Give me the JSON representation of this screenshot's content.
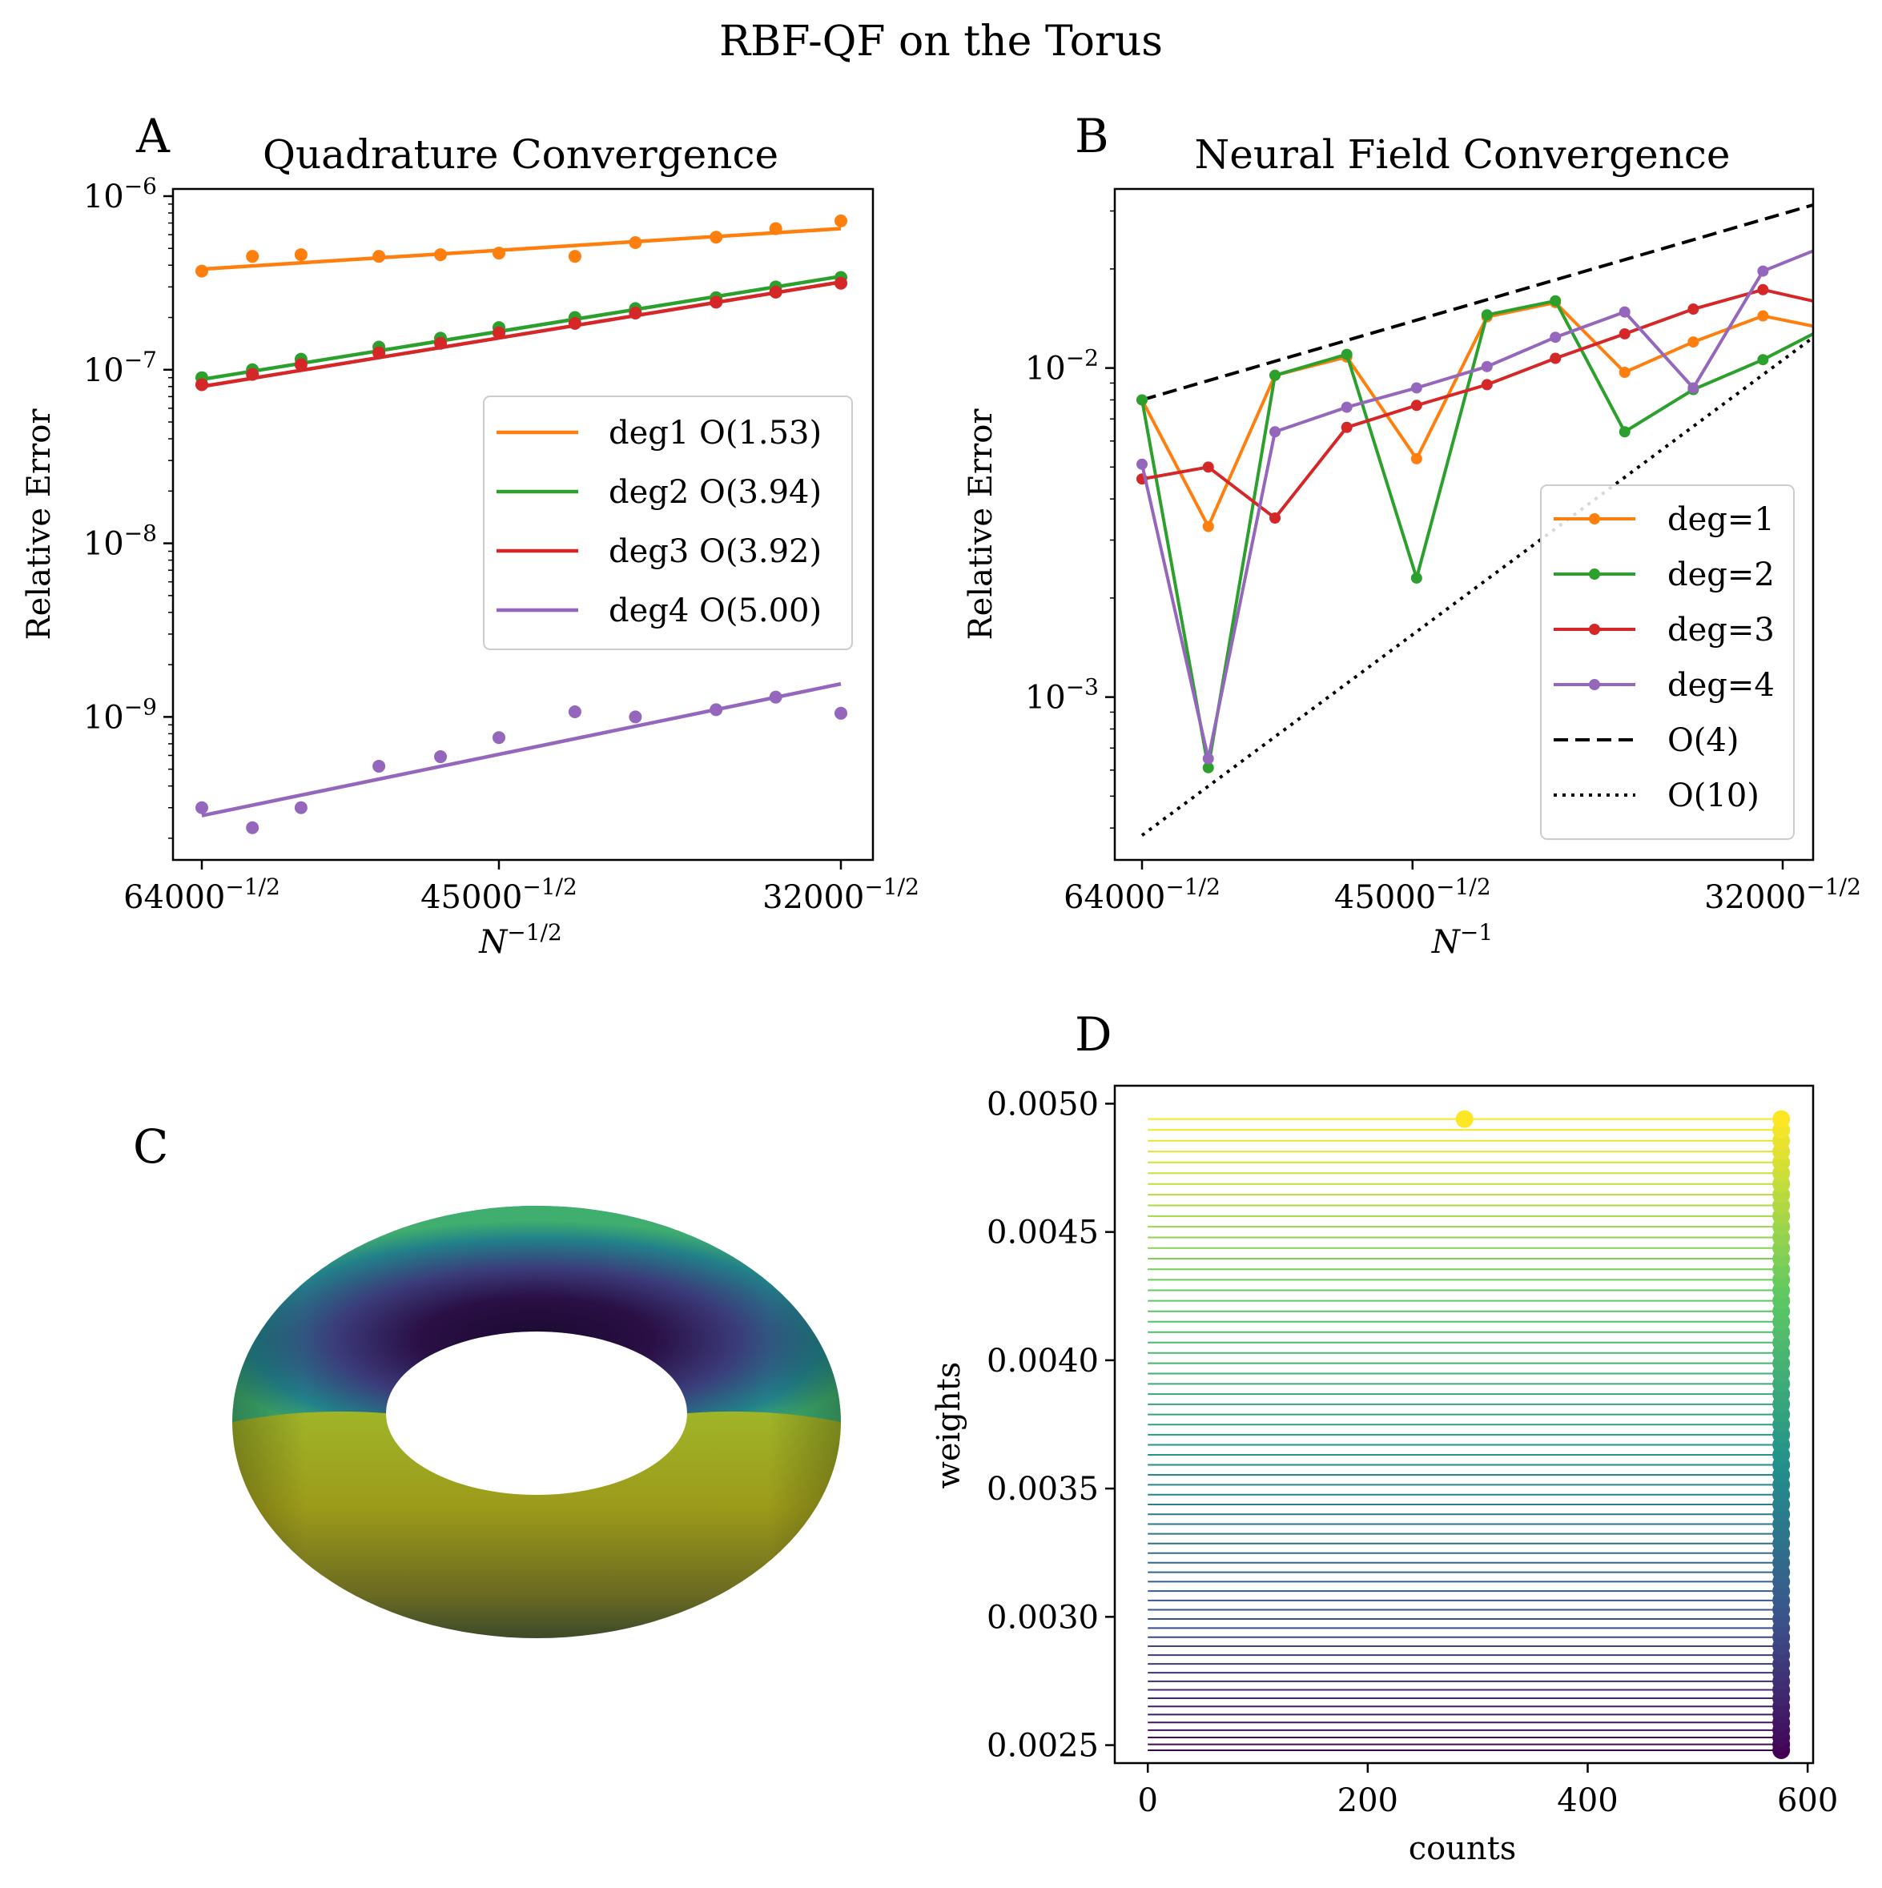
{
  "figure": {
    "title": "RBF-QF on the Torus"
  },
  "colors": {
    "deg1": "#ff7f0e",
    "deg2": "#2ca02c",
    "deg3": "#d62728",
    "deg4": "#9467bd",
    "ref": "#000000"
  },
  "chart_data": [
    {
      "panel": "A",
      "type": "scatter",
      "title": "Quadrature Convergence",
      "xlabel": "N^{-1/2}",
      "ylabel": "Relative Error",
      "xscale": "reciprocal-sqrt",
      "yscale": "log",
      "ylim": [
        1.5e-10,
        1.1e-06
      ],
      "x_ticks": [
        "64000",
        "45000",
        "32000"
      ],
      "y_ticks": [
        "-6",
        "-7",
        "-8",
        "-9"
      ],
      "grid": false,
      "legend": "center-right",
      "x": [
        64000,
        60000,
        56500,
        51500,
        48000,
        45000,
        41500,
        39000,
        36000,
        34000,
        32000
      ],
      "series": [
        {
          "name": "deg1 O(1.53)",
          "color": "#ff7f0e",
          "points": [
            3.7e-07,
            4.5e-07,
            4.6e-07,
            4.5e-07,
            4.6e-07,
            4.7e-07,
            4.5e-07,
            5.4e-07,
            5.8e-07,
            6.5e-07,
            7.2e-07
          ],
          "fit": [
            3.8e-07,
            6.5e-07
          ]
        },
        {
          "name": "deg2 O(3.94)",
          "color": "#2ca02c",
          "points": [
            9e-08,
            1e-07,
            1.15e-07,
            1.35e-07,
            1.52e-07,
            1.75e-07,
            2e-07,
            2.25e-07,
            2.6e-07,
            3e-07,
            3.4e-07
          ],
          "fit": [
            8.8e-08,
            3.45e-07
          ]
        },
        {
          "name": "deg3 O(3.92)",
          "color": "#d62728",
          "points": [
            8.2e-08,
            9.4e-08,
            1.07e-07,
            1.25e-07,
            1.42e-07,
            1.63e-07,
            1.85e-07,
            2.12e-07,
            2.45e-07,
            2.8e-07,
            3.15e-07
          ],
          "fit": [
            8e-08,
            3.2e-07
          ]
        },
        {
          "name": "deg4 O(5.00)",
          "color": "#9467bd",
          "points": [
            3e-10,
            2.3e-10,
            3e-10,
            5.2e-10,
            5.9e-10,
            7.6e-10,
            1.07e-09,
            1e-09,
            1.1e-09,
            1.3e-09,
            1.05e-09
          ],
          "fit": [
            2.7e-10,
            1.55e-09
          ]
        }
      ]
    },
    {
      "panel": "B",
      "type": "line",
      "title": "Neural Field Convergence",
      "xlabel": "N^{-1}",
      "ylabel": "Relative Error",
      "xscale": "reciprocal",
      "yscale": "log",
      "ylim": [
        0.00032,
        0.035
      ],
      "x_ticks": [
        "64000",
        "45000",
        "32000"
      ],
      "y_ticks": [
        "-2",
        "-3"
      ],
      "grid": false,
      "legend": "lower-right",
      "x": [
        64000,
        58000,
        53000,
        48500,
        44800,
        41600,
        38900,
        36500,
        34400,
        32500,
        31000
      ],
      "series": [
        {
          "name": "deg=1",
          "color": "#ff7f0e",
          "values": [
            0.008,
            0.0033,
            0.0095,
            0.0108,
            0.0053,
            0.0143,
            0.0158,
            0.0097,
            0.012,
            0.0144,
            0.0132
          ]
        },
        {
          "name": "deg=2",
          "color": "#2ca02c",
          "values": [
            0.008,
            0.00061,
            0.0095,
            0.011,
            0.0023,
            0.0145,
            0.016,
            0.0064,
            0.0086,
            0.0106,
            0.0132
          ]
        },
        {
          "name": "deg=3",
          "color": "#d62728",
          "values": [
            0.0046,
            0.005,
            0.0035,
            0.0066,
            0.0077,
            0.0089,
            0.0107,
            0.0127,
            0.0151,
            0.0173,
            0.0157
          ]
        },
        {
          "name": "deg=4",
          "color": "#9467bd",
          "values": [
            0.0051,
            0.00065,
            0.0064,
            0.0076,
            0.0087,
            0.0101,
            0.0124,
            0.0148,
            0.0087,
            0.0197,
            0.0234
          ]
        }
      ],
      "reference": [
        {
          "name": "O(4)",
          "style": "dashed",
          "values": [
            0.008,
            0.032
          ]
        },
        {
          "name": "O(10)",
          "style": "dotted",
          "values": [
            0.00038,
            0.0131
          ]
        }
      ]
    },
    {
      "panel": "C",
      "type": "other",
      "description_label": "C",
      "colormap": [
        "#440154",
        "#3b528b",
        "#21918c",
        "#5ec962",
        "#bddf26",
        "#fde725"
      ]
    },
    {
      "panel": "D",
      "type": "scatter",
      "xlabel": "counts",
      "ylabel": "weights",
      "xlim": [
        -30,
        605
      ],
      "ylim": [
        0.00243,
        0.00507
      ],
      "x_ticks": [
        0,
        200,
        400,
        600
      ],
      "y_ticks": [
        0.005,
        0.0045,
        0.004,
        0.0035,
        0.003,
        0.0025
      ],
      "y_tick_labels": [
        "0.0050",
        "0.0045",
        "0.0040",
        "0.0035",
        "0.0030",
        "0.0025"
      ],
      "weight_min": 0.00248,
      "weight_max": 0.00494,
      "count_max": 576,
      "highlight_point": {
        "x": 288,
        "y": 0.00494
      },
      "colormap": [
        "#440154",
        "#3b528b",
        "#21918c",
        "#5ec962",
        "#fde725"
      ]
    }
  ],
  "panel_labels": {
    "A": "A",
    "B": "B",
    "C": "C",
    "D": "D"
  }
}
